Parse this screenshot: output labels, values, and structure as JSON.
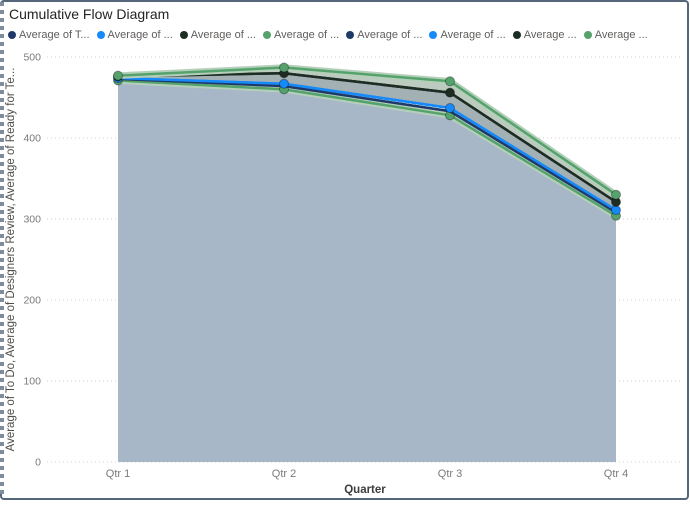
{
  "title": "Cumulative Flow Diagram",
  "legend": {
    "items": [
      {
        "label": "Average of T...",
        "color": "#1f3a68"
      },
      {
        "label": "Average of ...",
        "color": "#178af9"
      },
      {
        "label": "Average of ...",
        "color": "#1e2d24"
      },
      {
        "label": "Average of ...",
        "color": "#56a26c"
      },
      {
        "label": "Average of ...",
        "color": "#1f3a68"
      },
      {
        "label": "Average of ...",
        "color": "#178af9"
      },
      {
        "label": "Average ...",
        "color": "#1e2d24"
      },
      {
        "label": "Average ...",
        "color": "#56a26c"
      }
    ]
  },
  "chart_data": {
    "type": "area",
    "title": "Cumulative Flow Diagram",
    "categories": [
      "Qtr 1",
      "Qtr 2",
      "Qtr 3",
      "Qtr 4"
    ],
    "xlabel": "Quarter",
    "ylabel": "Average of To Do, Average of Designers Review, Average of Ready for Te...",
    "ylim": [
      0,
      500
    ],
    "yticks": [
      0,
      100,
      200,
      300,
      400,
      500
    ],
    "grid": "dotted-horizontal",
    "legend_position": "top",
    "series": [
      {
        "name": "Average of T...",
        "color": "#1f3a68",
        "values": [
          473,
          464,
          433,
          308
        ],
        "z": 0,
        "marker": false
      },
      {
        "name": "Average of ...",
        "color": "#178af9",
        "values": [
          474,
          467,
          437,
          311
        ],
        "z": 3,
        "marker": true
      },
      {
        "name": "Average of ...",
        "color": "#1e2d24",
        "values": [
          476,
          480,
          456,
          321
        ],
        "z": 4,
        "marker": true
      },
      {
        "name": "Average of ...",
        "color": "#56a26c",
        "values": [
          477,
          487,
          470,
          330
        ],
        "z": 5,
        "marker": true,
        "halo": true
      },
      {
        "name": "Average of ...",
        "color": "#1f3a68",
        "values": [
          473,
          464,
          433,
          308
        ],
        "z": 2,
        "marker": false
      },
      {
        "name": "Average of ...",
        "color": "#178af9",
        "values": [
          474,
          467,
          437,
          311
        ],
        "z": 0,
        "marker": false
      },
      {
        "name": "Average ...",
        "color": "#1e2d24",
        "values": [
          476,
          480,
          456,
          321
        ],
        "z": 0,
        "marker": false
      },
      {
        "name": "Average ...",
        "color": "#56a26c",
        "values": [
          471,
          460,
          428,
          304
        ],
        "z": 1,
        "marker": true,
        "halo": true
      }
    ],
    "fills": [
      {
        "top": 7,
        "to_baseline": true,
        "color": "#a7b7c8"
      },
      {
        "top": 2,
        "bottom": 1,
        "color": "#a3b1b5"
      },
      {
        "top": 3,
        "bottom": 2,
        "color": "#bccabf"
      }
    ],
    "colors": {
      "area_main": "#a7b7c8",
      "gridline": "#d2d2d2",
      "tick_text": "#7a7a7a",
      "axis_title": "#3c3c3c",
      "halo_green": "#b4d0ba",
      "frame_border": "#55657a"
    }
  }
}
